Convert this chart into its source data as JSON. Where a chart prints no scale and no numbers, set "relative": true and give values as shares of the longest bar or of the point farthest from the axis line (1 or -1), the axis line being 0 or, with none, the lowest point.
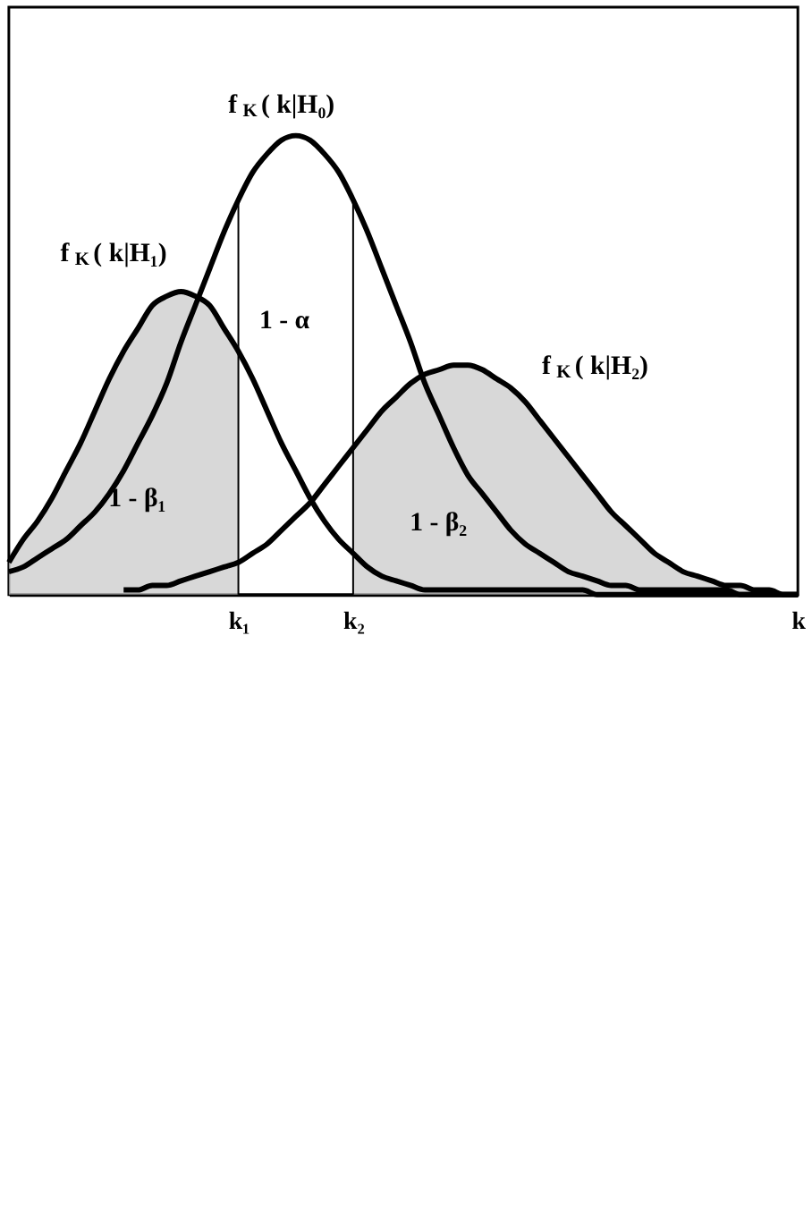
{
  "chart_data": {
    "type": "line",
    "relative": true,
    "grid": false,
    "legend": false,
    "line_style": "solid",
    "marker": "none",
    "categories": [
      null,
      null,
      null,
      null,
      null,
      null,
      null,
      null,
      null,
      null,
      null,
      null,
      null,
      null,
      null,
      null,
      "k₁",
      null,
      null,
      null,
      null,
      null,
      null,
      null,
      "k₂",
      null,
      null,
      null,
      null,
      null,
      null,
      null,
      null,
      null,
      null,
      null,
      null,
      null,
      null,
      null,
      null,
      null,
      null,
      null,
      null,
      null,
      null,
      null,
      null,
      null,
      null,
      null,
      null,
      null,
      null,
      "k"
    ],
    "series": [
      {
        "name": "f$_{K}$( k|H₀)",
        "color": "#000000",
        "values": [
          0.05,
          0.06,
          0.08,
          0.1,
          0.12,
          0.15,
          0.18,
          0.22,
          0.27,
          0.33,
          0.39,
          0.46,
          0.55,
          0.63,
          0.71,
          0.79,
          0.86,
          0.92,
          0.96,
          0.99,
          1,
          0.99,
          0.96,
          0.92,
          0.86,
          0.79,
          0.71,
          0.63,
          0.55,
          0.46,
          0.39,
          0.32,
          0.26,
          0.22,
          0.18,
          0.14,
          0.11,
          0.09,
          0.07,
          0.05,
          0.04,
          0.03,
          0.02,
          0.02,
          0.01,
          0.01,
          0.01,
          0.01,
          0.01,
          0.01,
          0.01,
          0,
          0,
          0,
          0,
          0
        ]
      },
      {
        "name": "f$_{K}$( k|H₁)",
        "color": "#000000",
        "values": [
          0.07,
          0.12,
          0.16,
          0.21,
          0.27,
          0.33,
          0.4,
          0.47,
          0.53,
          0.58,
          0.63,
          0.65,
          0.66,
          0.65,
          0.63,
          0.58,
          0.53,
          0.47,
          0.4,
          0.33,
          0.27,
          0.21,
          0.16,
          0.12,
          0.09,
          0.06,
          0.04,
          0.03,
          0.02,
          0.01,
          0.01,
          0.01,
          0.01,
          0.01,
          0.01,
          0.01,
          0.01,
          0.01,
          0.01,
          0.01,
          0.01,
          0,
          0,
          0,
          0,
          0,
          0,
          0,
          0,
          0,
          0,
          0,
          0,
          0,
          0,
          0
        ]
      },
      {
        "name": "f$_{K}$( k|H₂)",
        "color": "#000000",
        "values": [
          null,
          null,
          null,
          null,
          null,
          null,
          null,
          null,
          0.01,
          0.01,
          0.02,
          0.02,
          0.03,
          0.04,
          0.05,
          0.06,
          0.07,
          0.09,
          0.11,
          0.14,
          0.17,
          0.2,
          0.24,
          0.28,
          0.32,
          0.36,
          0.4,
          0.43,
          0.46,
          0.48,
          0.49,
          0.5,
          0.5,
          0.49,
          0.47,
          0.45,
          0.42,
          0.38,
          0.34,
          0.3,
          0.26,
          0.22,
          0.18,
          0.15,
          0.12,
          0.09,
          0.07,
          0.05,
          0.04,
          0.03,
          0.02,
          0.02,
          0.01,
          0.01,
          0,
          0
        ]
      },
      {
        "type": "area",
        "name": "1 - β₁",
        "color": "#c8c8c8",
        "values": [
          0.07,
          0.12,
          0.16,
          0.21,
          0.27,
          0.33,
          0.4,
          0.47,
          0.53,
          0.58,
          0.63,
          0.65,
          0.66,
          0.65,
          0.63,
          0.58,
          0.53,
          null,
          null,
          null,
          null,
          null,
          null,
          null,
          null,
          null,
          null,
          null,
          null,
          null,
          null,
          null,
          null,
          null,
          null,
          null,
          null,
          null,
          null,
          null,
          null,
          null,
          null,
          null,
          null,
          null,
          null,
          null,
          null,
          null,
          null,
          null,
          null,
          null,
          null,
          null
        ]
      },
      {
        "type": "area",
        "name": "1 - β₂",
        "color": "#c8c8c8",
        "values": [
          null,
          null,
          null,
          null,
          null,
          null,
          null,
          null,
          null,
          null,
          null,
          null,
          null,
          null,
          null,
          null,
          null,
          null,
          null,
          null,
          null,
          null,
          null,
          null,
          0.32,
          0.36,
          0.4,
          0.43,
          0.46,
          0.48,
          0.49,
          0.5,
          0.5,
          0.49,
          0.47,
          0.45,
          0.42,
          0.38,
          0.34,
          0.3,
          0.26,
          0.22,
          0.18,
          0.15,
          0.12,
          0.09,
          0.07,
          0.05,
          0.04,
          0.03,
          0.02,
          0.02,
          0.01,
          0.01,
          0,
          0
        ]
      }
    ],
    "ref_lines": [
      {
        "axis": "x",
        "value": "k₁",
        "color": "#000000"
      },
      {
        "axis": "x",
        "value": "k₂",
        "color": "#000000"
      }
    ],
    "annotations": [
      "1 - α"
    ]
  }
}
